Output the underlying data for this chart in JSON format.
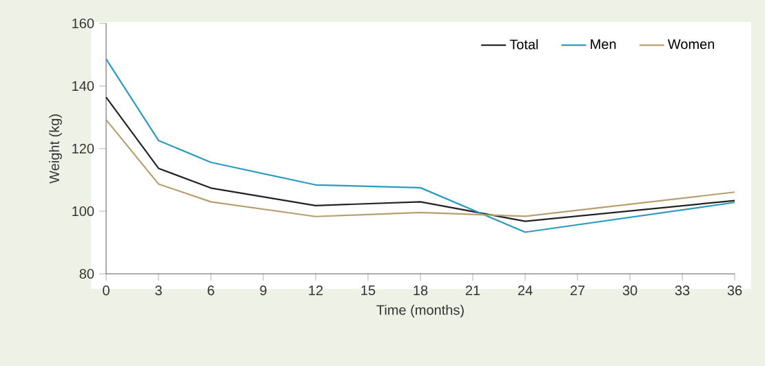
{
  "chart_data": {
    "type": "line",
    "xlabel": "Time (months)",
    "ylabel": "Weight (kg)",
    "x": [
      0,
      3,
      6,
      12,
      18,
      24,
      36
    ],
    "series": [
      {
        "name": "Total",
        "color": "#222222",
        "values": [
          136.4,
          113.7,
          107.4,
          101.8,
          103.0,
          96.8,
          103.4
        ]
      },
      {
        "name": "Men",
        "color": "#2b9ac0",
        "values": [
          148.6,
          122.6,
          115.6,
          108.4,
          107.5,
          93.3,
          102.8
        ]
      },
      {
        "name": "Women",
        "color": "#b89f70",
        "values": [
          129.2,
          108.7,
          103.0,
          98.3,
          99.6,
          98.4,
          106.1
        ]
      }
    ],
    "xlim": [
      0,
      36
    ],
    "xticks": [
      0,
      3,
      6,
      9,
      12,
      15,
      18,
      21,
      24,
      27,
      30,
      33,
      36
    ],
    "ylim": [
      80,
      160
    ],
    "yticks": [
      80,
      100,
      120,
      140,
      160
    ],
    "grid": false,
    "legend": "top right",
    "marker": "none",
    "line_style": "solid"
  }
}
